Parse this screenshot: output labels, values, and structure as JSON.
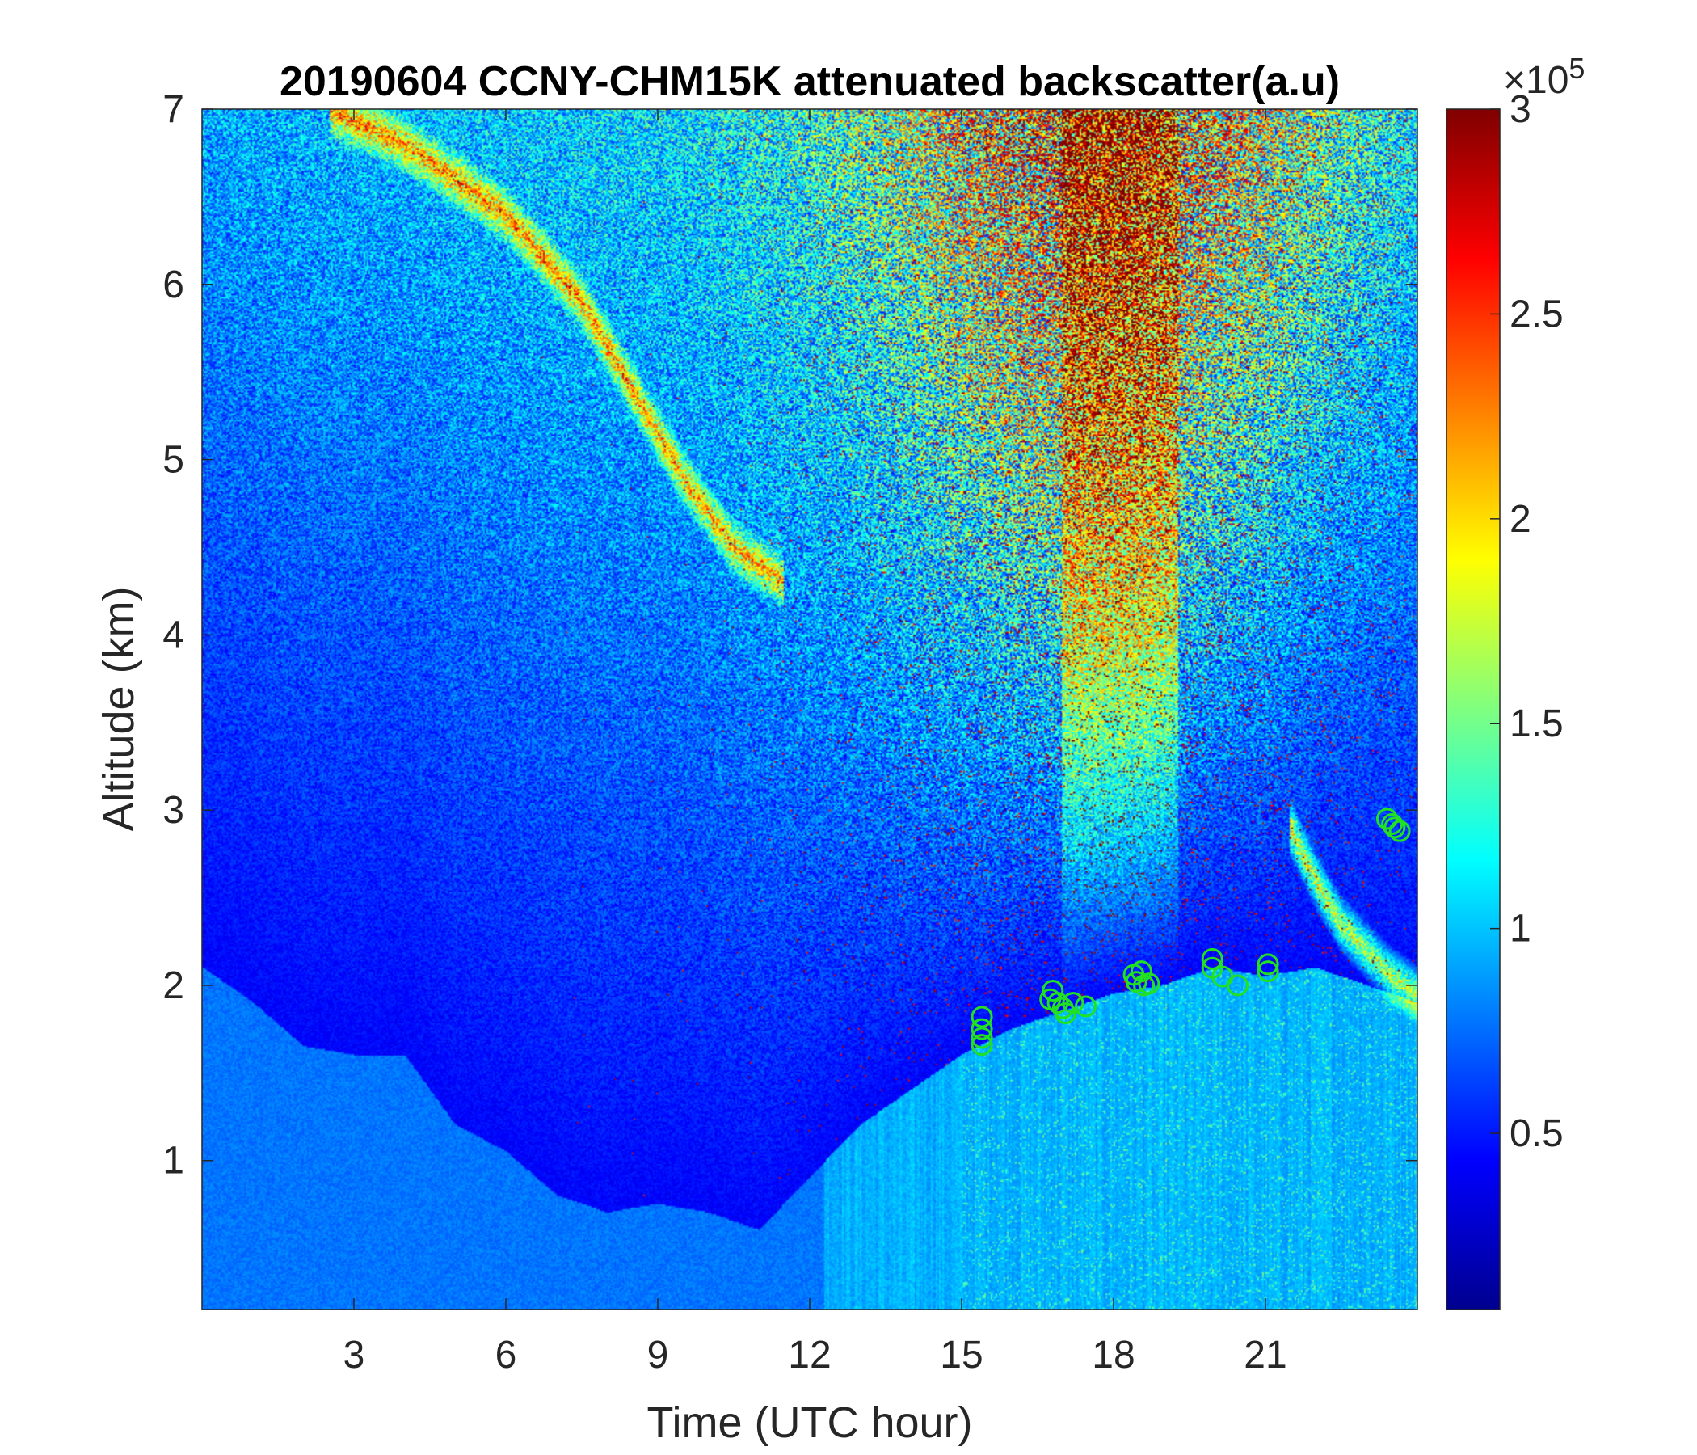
{
  "chart_data": {
    "type": "heatmap",
    "title": "20190604 CCNY-CHM15K attenuated backscatter(a.u)",
    "xlabel": "Time (UTC hour)",
    "ylabel": "Altitude (km)",
    "xlim": [
      0,
      24
    ],
    "ylim": [
      0.15,
      7
    ],
    "xticks": [
      3,
      6,
      9,
      12,
      15,
      18,
      21
    ],
    "yticks": [
      1,
      2,
      3,
      4,
      5,
      6,
      7
    ],
    "colorbar": {
      "colormap": "jet",
      "clim": [
        7000,
        300000
      ],
      "ticks": [
        0.5,
        1,
        1.5,
        2,
        2.5,
        3
      ],
      "exponent_label": "×10",
      "exponent_power": "5"
    },
    "boundary_layer": [
      [
        0,
        2.1
      ],
      [
        1,
        1.9
      ],
      [
        2,
        1.65
      ],
      [
        3,
        1.6
      ],
      [
        4,
        1.6
      ],
      [
        5,
        1.2
      ],
      [
        6,
        1.05
      ],
      [
        7,
        0.8
      ],
      [
        8,
        0.7
      ],
      [
        9,
        0.75
      ],
      [
        10,
        0.7
      ],
      [
        11,
        0.6
      ],
      [
        12,
        0.9
      ],
      [
        13,
        1.2
      ],
      [
        14,
        1.4
      ],
      [
        15,
        1.6
      ],
      [
        16,
        1.75
      ],
      [
        17,
        1.85
      ],
      [
        18,
        1.95
      ],
      [
        19,
        2.0
      ],
      [
        20,
        2.1
      ],
      [
        21,
        2.05
      ],
      [
        22,
        2.1
      ],
      [
        23,
        2.0
      ],
      [
        24,
        1.9
      ]
    ],
    "aerosol_layers": [
      {
        "x": [
          2.5,
          4,
          6,
          7.5,
          8.5,
          9.5,
          10.5,
          11.5
        ],
        "y": [
          7.0,
          6.8,
          6.4,
          5.9,
          5.4,
          4.9,
          4.5,
          4.3
        ]
      },
      {
        "x": [
          21.5,
          22,
          22.5,
          23,
          23.5,
          24
        ],
        "y": [
          2.9,
          2.6,
          2.35,
          2.2,
          2.05,
          1.95
        ]
      }
    ],
    "markers": {
      "color": "#22e022",
      "points": [
        {
          "x": 15.4,
          "y": 1.82
        },
        {
          "x": 15.4,
          "y": 1.75
        },
        {
          "x": 15.4,
          "y": 1.7
        },
        {
          "x": 15.4,
          "y": 1.66
        },
        {
          "x": 16.8,
          "y": 1.97
        },
        {
          "x": 16.75,
          "y": 1.92
        },
        {
          "x": 16.9,
          "y": 1.9
        },
        {
          "x": 17.0,
          "y": 1.87
        },
        {
          "x": 17.05,
          "y": 1.84
        },
        {
          "x": 17.2,
          "y": 1.9
        },
        {
          "x": 17.45,
          "y": 1.88
        },
        {
          "x": 18.4,
          "y": 2.06
        },
        {
          "x": 18.45,
          "y": 2.02
        },
        {
          "x": 18.55,
          "y": 2.08
        },
        {
          "x": 18.6,
          "y": 2.0
        },
        {
          "x": 18.7,
          "y": 2.01
        },
        {
          "x": 19.95,
          "y": 2.15
        },
        {
          "x": 19.95,
          "y": 2.1
        },
        {
          "x": 20.15,
          "y": 2.05
        },
        {
          "x": 20.45,
          "y": 2.0
        },
        {
          "x": 21.05,
          "y": 2.12
        },
        {
          "x": 21.05,
          "y": 2.08
        },
        {
          "x": 23.4,
          "y": 2.95
        },
        {
          "x": 23.5,
          "y": 2.92
        },
        {
          "x": 23.55,
          "y": 2.9
        },
        {
          "x": 23.65,
          "y": 2.88
        }
      ]
    }
  }
}
